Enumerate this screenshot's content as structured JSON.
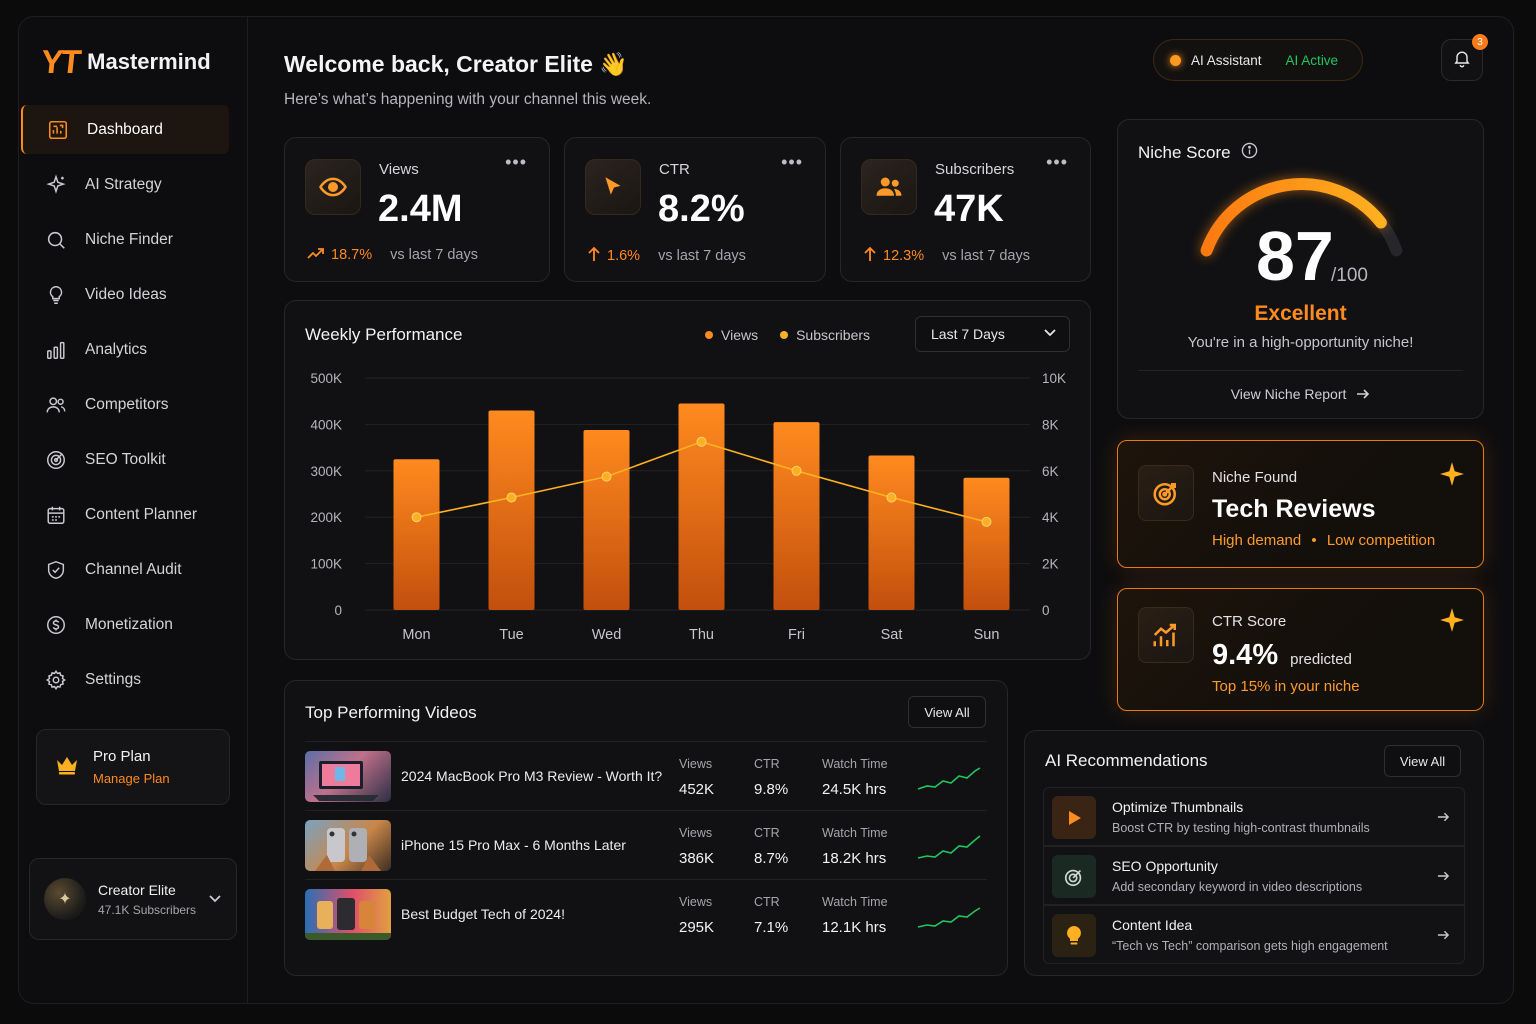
{
  "app": {
    "logo_mark": "YT",
    "logo_text": "Mastermind"
  },
  "sidebar": {
    "items": [
      {
        "label": "Dashboard",
        "icon": "dashboard-icon",
        "active": true
      },
      {
        "label": "AI Strategy",
        "icon": "sparkle-icon"
      },
      {
        "label": "Niche Finder",
        "icon": "search-icon"
      },
      {
        "label": "Video Ideas",
        "icon": "lightbulb-icon"
      },
      {
        "label": "Analytics",
        "icon": "bar-chart-icon"
      },
      {
        "label": "Competitors",
        "icon": "users-icon"
      },
      {
        "label": "SEO Toolkit",
        "icon": "target-icon"
      },
      {
        "label": "Content Planner",
        "icon": "calendar-icon"
      },
      {
        "label": "Channel Audit",
        "icon": "shield-icon"
      },
      {
        "label": "Monetization",
        "icon": "dollar-icon"
      },
      {
        "label": "Settings",
        "icon": "gear-icon"
      }
    ],
    "plan": {
      "title": "Pro Plan",
      "link": "Manage Plan"
    },
    "user": {
      "name": "Creator Elite",
      "subscribers": "47.1K Subscribers"
    }
  },
  "header": {
    "welcome": "Welcome back, Creator Elite 👋",
    "subtitle": "Here’s what’s happening with your channel this week.",
    "ai_label": "AI Assistant",
    "ai_status": "AI Active",
    "notifications": "3"
  },
  "stats": [
    {
      "label": "Views",
      "value": "2.4M",
      "change": "18.7%",
      "vs": "vs last 7 days",
      "icon": "eye-icon"
    },
    {
      "label": "CTR",
      "value": "8.2%",
      "change": "1.6%",
      "vs": "vs last 7 days",
      "icon": "cursor-icon"
    },
    {
      "label": "Subscribers",
      "value": "47K",
      "change": "12.3%",
      "vs": "vs last 7 days",
      "icon": "users-icon"
    }
  ],
  "chart": {
    "title": "Weekly Performance",
    "legend_views": "Views",
    "legend_subs": "Subscribers",
    "range": "Last 7 Days"
  },
  "chart_data": {
    "type": "bar",
    "categories": [
      "Mon",
      "Tue",
      "Wed",
      "Thu",
      "Fri",
      "Sat",
      "Sun"
    ],
    "series": [
      {
        "name": "Views",
        "type": "bar",
        "axis": "left",
        "values": [
          325000,
          430000,
          388000,
          445000,
          405000,
          333000,
          285000
        ]
      },
      {
        "name": "Subscribers",
        "type": "line",
        "axis": "right",
        "values": [
          4000,
          4850,
          5750,
          7250,
          6000,
          4850,
          3800
        ]
      }
    ],
    "y_left": {
      "ticks": [
        "0",
        "100K",
        "200K",
        "300K",
        "400K",
        "500K"
      ],
      "range": [
        0,
        500000
      ]
    },
    "y_right": {
      "ticks": [
        "0",
        "2K",
        "4K",
        "6K",
        "8K",
        "10K"
      ],
      "range": [
        0,
        10000
      ]
    },
    "colors": {
      "bar": "#ff8a1f",
      "line": "#ffb020"
    }
  },
  "top_videos": {
    "title": "Top Performing Videos",
    "view_all": "View All",
    "headers": {
      "views": "Views",
      "ctr": "CTR",
      "watch": "Watch Time"
    },
    "rows": [
      {
        "title": "2024 MacBook Pro M3 Review - Worth It?",
        "views": "452K",
        "ctr": "9.8%",
        "watch": "24.5K hrs"
      },
      {
        "title": "iPhone 15 Pro Max - 6 Months Later",
        "views": "386K",
        "ctr": "8.7%",
        "watch": "18.2K hrs"
      },
      {
        "title": "Best Budget Tech of 2024!",
        "views": "295K",
        "ctr": "7.1%",
        "watch": "12.1K hrs"
      }
    ]
  },
  "niche_score": {
    "title": "Niche Score",
    "value": "87",
    "max": "/100",
    "score_fraction": 0.87,
    "label": "Excellent",
    "desc": "You're in a high-opportunity niche!",
    "link": "View Niche Report"
  },
  "niche_found": {
    "label": "Niche Found",
    "title": "Tech Reviews",
    "tag1": "High demand",
    "tag2": "Low competition"
  },
  "ctr_score": {
    "label": "CTR Score",
    "value": "9.4%",
    "suffix": "predicted",
    "sub": "Top 15% in your niche"
  },
  "recommendations": {
    "title": "AI Recommendations",
    "view_all": "View All",
    "items": [
      {
        "title": "Optimize Thumbnails",
        "desc": "Boost CTR by testing high-contrast thumbnails",
        "icon": "play-icon"
      },
      {
        "title": "SEO Opportunity",
        "desc": "Add secondary keyword in video descriptions",
        "icon": "target-icon"
      },
      {
        "title": "Content Idea",
        "desc": "“Tech vs Tech” comparison gets high engagement",
        "icon": "lightbulb-icon"
      }
    ]
  }
}
